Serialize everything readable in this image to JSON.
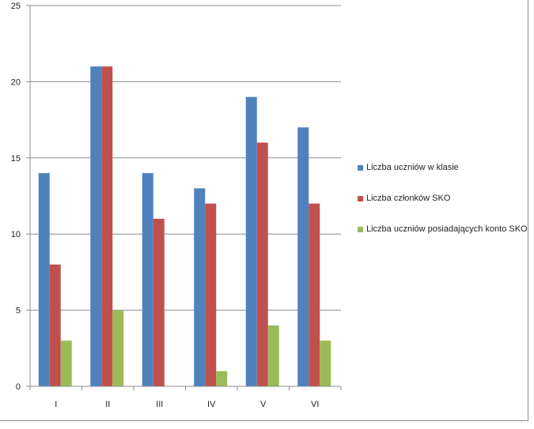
{
  "chart_data": {
    "type": "bar",
    "categories": [
      "I",
      "II",
      "III",
      "IV",
      "V",
      "VI"
    ],
    "series": [
      {
        "name": "Liczba uczniów w klasie",
        "color": "#4f81bd",
        "values": [
          14,
          21,
          14,
          13,
          19,
          17
        ]
      },
      {
        "name": "Liczba członków SKO",
        "color": "#c0504d",
        "values": [
          8,
          21,
          11,
          12,
          16,
          12
        ]
      },
      {
        "name": "Liczba uczniów posiadających konto SKO",
        "color": "#9bbb59",
        "values": [
          3,
          5,
          0,
          1,
          4,
          3
        ]
      }
    ],
    "ylim": [
      0,
      25
    ],
    "yticks": [
      "0",
      "5",
      "10",
      "15",
      "20",
      "25"
    ],
    "grid": true,
    "legend_position": "right"
  }
}
